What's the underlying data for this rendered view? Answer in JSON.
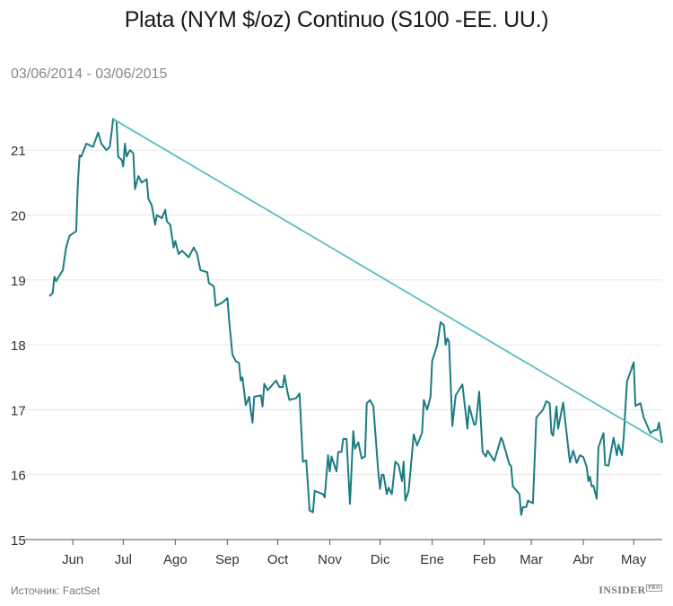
{
  "title": "Plata (NYM $/oz) Continuo (S100 -EE. UU.)",
  "subtitle": "03/06/2014 - 03/06/2015",
  "source": "Источник: FactSet",
  "logo": {
    "text": "INSIDER",
    "badge": "PRO"
  },
  "colors": {
    "series": "#1b7c82",
    "trend": "#5bbcc0",
    "grid": "#e6e6e6"
  },
  "chart_data": {
    "type": "line",
    "title": "Plata (NYM $/oz) Continuo (S100 -EE. UU.)",
    "xlabel": "",
    "ylabel": "",
    "xlim": [
      "2014-06-03",
      "2015-06-03"
    ],
    "ylim": [
      15,
      21.6
    ],
    "grid": true,
    "yticks": [
      15,
      16,
      17,
      18,
      19,
      20,
      21
    ],
    "xtick_labels": [
      "Jun",
      "Jul",
      "Ago",
      "Sep",
      "Oct",
      "Nov",
      "Dic",
      "Ene",
      "Feb",
      "Mar",
      "Abr",
      "May"
    ],
    "series": [
      {
        "points": [
          [
            "2014-06-03",
            18.75
          ],
          [
            "2014-06-05",
            18.8
          ],
          [
            "2014-06-06",
            19.05
          ],
          [
            "2014-06-07",
            18.98
          ],
          [
            "2014-06-11",
            19.15
          ],
          [
            "2014-06-13",
            19.5
          ],
          [
            "2014-06-15",
            19.68
          ],
          [
            "2014-06-19",
            19.75
          ],
          [
            "2014-06-20",
            20.5
          ],
          [
            "2014-06-21",
            20.92
          ],
          [
            "2014-06-22",
            20.9
          ],
          [
            "2014-06-25",
            21.1
          ],
          [
            "2014-06-29",
            21.05
          ],
          [
            "2014-07-02",
            21.27
          ],
          [
            "2014-07-04",
            21.1
          ],
          [
            "2014-07-07",
            21.0
          ],
          [
            "2014-07-09",
            21.05
          ],
          [
            "2014-07-11",
            21.48
          ],
          [
            "2014-07-13",
            21.45
          ],
          [
            "2014-07-14",
            20.9
          ],
          [
            "2014-07-16",
            20.85
          ],
          [
            "2014-07-17",
            20.75
          ],
          [
            "2014-07-18",
            21.1
          ],
          [
            "2014-07-19",
            20.9
          ],
          [
            "2014-07-21",
            21.0
          ],
          [
            "2014-07-23",
            20.95
          ],
          [
            "2014-07-24",
            20.4
          ],
          [
            "2014-07-26",
            20.6
          ],
          [
            "2014-07-28",
            20.5
          ],
          [
            "2014-07-31",
            20.55
          ],
          [
            "2014-08-01",
            20.25
          ],
          [
            "2014-08-03",
            20.15
          ],
          [
            "2014-08-05",
            19.85
          ],
          [
            "2014-08-06",
            20.0
          ],
          [
            "2014-08-09",
            19.95
          ],
          [
            "2014-08-11",
            20.08
          ],
          [
            "2014-08-12",
            19.9
          ],
          [
            "2014-08-14",
            19.85
          ],
          [
            "2014-08-16",
            19.5
          ],
          [
            "2014-08-17",
            19.6
          ],
          [
            "2014-08-19",
            19.4
          ],
          [
            "2014-08-21",
            19.45
          ],
          [
            "2014-08-25",
            19.35
          ],
          [
            "2014-08-28",
            19.5
          ],
          [
            "2014-08-30",
            19.4
          ],
          [
            "2014-09-01",
            19.15
          ],
          [
            "2014-09-05",
            19.12
          ],
          [
            "2014-09-06",
            18.95
          ],
          [
            "2014-09-09",
            18.9
          ],
          [
            "2014-09-10",
            18.6
          ],
          [
            "2014-09-14",
            18.65
          ],
          [
            "2014-09-17",
            18.72
          ],
          [
            "2014-09-18",
            18.4
          ],
          [
            "2014-09-20",
            17.85
          ],
          [
            "2014-09-22",
            17.75
          ],
          [
            "2014-09-24",
            17.72
          ],
          [
            "2014-09-25",
            17.45
          ],
          [
            "2014-09-26",
            17.5
          ],
          [
            "2014-09-28",
            17.07
          ],
          [
            "2014-09-30",
            17.2
          ],
          [
            "2014-10-01",
            16.98
          ],
          [
            "2014-10-02",
            16.8
          ],
          [
            "2014-10-03",
            17.2
          ],
          [
            "2014-10-07",
            17.22
          ],
          [
            "2014-10-08",
            17.05
          ],
          [
            "2014-10-09",
            17.4
          ],
          [
            "2014-10-11",
            17.3
          ],
          [
            "2014-10-16",
            17.45
          ],
          [
            "2014-10-18",
            17.35
          ],
          [
            "2014-10-20",
            17.35
          ],
          [
            "2014-10-21",
            17.53
          ],
          [
            "2014-10-23",
            17.25
          ],
          [
            "2014-10-24",
            17.15
          ],
          [
            "2014-10-28",
            17.18
          ],
          [
            "2014-10-30",
            17.25
          ],
          [
            "2014-11-01",
            16.2
          ],
          [
            "2014-11-03",
            16.22
          ],
          [
            "2014-11-05",
            15.45
          ],
          [
            "2014-11-07",
            15.42
          ],
          [
            "2014-11-08",
            15.75
          ],
          [
            "2014-11-13",
            15.7
          ],
          [
            "2014-11-14",
            15.65
          ],
          [
            "2014-11-16",
            16.3
          ],
          [
            "2014-11-17",
            16.05
          ],
          [
            "2014-11-18",
            16.28
          ],
          [
            "2014-11-21",
            16.05
          ],
          [
            "2014-11-22",
            16.35
          ],
          [
            "2014-11-24",
            16.35
          ],
          [
            "2014-11-25",
            16.55
          ],
          [
            "2014-11-27",
            16.55
          ],
          [
            "2014-11-29",
            15.55
          ],
          [
            "2014-12-01",
            16.67
          ],
          [
            "2014-12-02",
            16.4
          ],
          [
            "2014-12-04",
            16.5
          ],
          [
            "2014-12-06",
            16.25
          ],
          [
            "2014-12-08",
            16.28
          ],
          [
            "2014-12-09",
            17.1
          ],
          [
            "2014-12-11",
            17.15
          ],
          [
            "2014-12-13",
            17.05
          ],
          [
            "2014-12-16",
            16.0
          ],
          [
            "2014-12-17",
            15.78
          ],
          [
            "2014-12-18",
            16.0
          ],
          [
            "2014-12-19",
            16.0
          ],
          [
            "2014-12-21",
            15.7
          ],
          [
            "2014-12-22",
            15.8
          ],
          [
            "2014-12-24",
            15.7
          ],
          [
            "2014-12-26",
            16.2
          ],
          [
            "2014-12-28",
            16.15
          ],
          [
            "2014-12-30",
            15.9
          ],
          [
            "2014-12-31",
            16.2
          ],
          [
            "2015-01-01",
            15.6
          ],
          [
            "2015-01-03",
            15.75
          ],
          [
            "2015-01-06",
            16.62
          ],
          [
            "2015-01-08",
            16.45
          ],
          [
            "2015-01-11",
            16.65
          ],
          [
            "2015-01-12",
            17.15
          ],
          [
            "2015-01-14",
            17.0
          ],
          [
            "2015-01-16",
            17.2
          ],
          [
            "2015-01-17",
            17.75
          ],
          [
            "2015-01-20",
            18.0
          ],
          [
            "2015-01-22",
            18.35
          ],
          [
            "2015-01-24",
            18.3
          ],
          [
            "2015-01-25",
            18.0
          ],
          [
            "2015-01-26",
            18.1
          ],
          [
            "2015-01-27",
            18.05
          ],
          [
            "2015-01-29",
            16.75
          ],
          [
            "2015-01-31",
            17.22
          ],
          [
            "2015-02-04",
            17.39
          ],
          [
            "2015-02-07",
            16.71
          ],
          [
            "2015-02-08",
            17.06
          ],
          [
            "2015-02-11",
            16.77
          ],
          [
            "2015-02-12",
            16.78
          ],
          [
            "2015-02-14",
            17.28
          ],
          [
            "2015-02-16",
            16.35
          ],
          [
            "2015-02-18",
            16.28
          ],
          [
            "2015-02-19",
            16.37
          ],
          [
            "2015-02-23",
            16.21
          ],
          [
            "2015-02-27",
            16.57
          ],
          [
            "2015-02-28",
            16.52
          ],
          [
            "2015-03-04",
            16.16
          ],
          [
            "2015-03-05",
            16.13
          ],
          [
            "2015-03-06",
            15.82
          ],
          [
            "2015-03-10",
            15.7
          ],
          [
            "2015-03-11",
            15.38
          ],
          [
            "2015-03-12",
            15.5
          ],
          [
            "2015-03-14",
            15.5
          ],
          [
            "2015-03-15",
            15.6
          ],
          [
            "2015-03-18",
            15.56
          ],
          [
            "2015-03-20",
            16.88
          ],
          [
            "2015-03-24",
            17.0
          ],
          [
            "2015-03-26",
            17.13
          ],
          [
            "2015-03-28",
            17.1
          ],
          [
            "2015-03-29",
            16.64
          ],
          [
            "2015-03-30",
            16.6
          ],
          [
            "2015-04-01",
            17.05
          ],
          [
            "2015-04-02",
            16.71
          ],
          [
            "2015-04-05",
            17.11
          ],
          [
            "2015-04-09",
            16.19
          ],
          [
            "2015-04-11",
            16.37
          ],
          [
            "2015-04-13",
            16.18
          ],
          [
            "2015-04-15",
            16.3
          ],
          [
            "2015-04-17",
            16.27
          ],
          [
            "2015-04-19",
            16.12
          ],
          [
            "2015-04-20",
            15.9
          ],
          [
            "2015-04-21",
            15.97
          ],
          [
            "2015-04-22",
            15.82
          ],
          [
            "2015-04-23",
            15.83
          ],
          [
            "2015-04-25",
            15.63
          ],
          [
            "2015-04-26",
            16.42
          ],
          [
            "2015-04-29",
            16.64
          ],
          [
            "2015-04-30",
            16.15
          ],
          [
            "2015-05-02",
            16.14
          ],
          [
            "2015-05-05",
            16.57
          ],
          [
            "2015-05-07",
            16.3
          ],
          [
            "2015-05-08",
            16.46
          ],
          [
            "2015-05-10",
            16.3
          ],
          [
            "2015-05-11",
            16.56
          ],
          [
            "2015-05-13",
            17.43
          ],
          [
            "2015-05-17",
            17.73
          ],
          [
            "2015-05-18",
            17.06
          ],
          [
            "2015-05-21",
            17.1
          ],
          [
            "2015-05-23",
            16.88
          ],
          [
            "2015-05-27",
            16.64
          ],
          [
            "2015-05-29",
            16.68
          ],
          [
            "2015-05-31",
            16.69
          ],
          [
            "2015-06-01",
            16.8
          ],
          [
            "2015-06-03",
            16.49
          ]
        ]
      }
    ],
    "trendline": [
      [
        "2014-07-11",
        21.48
      ],
      [
        "2015-06-03",
        16.49
      ]
    ]
  }
}
